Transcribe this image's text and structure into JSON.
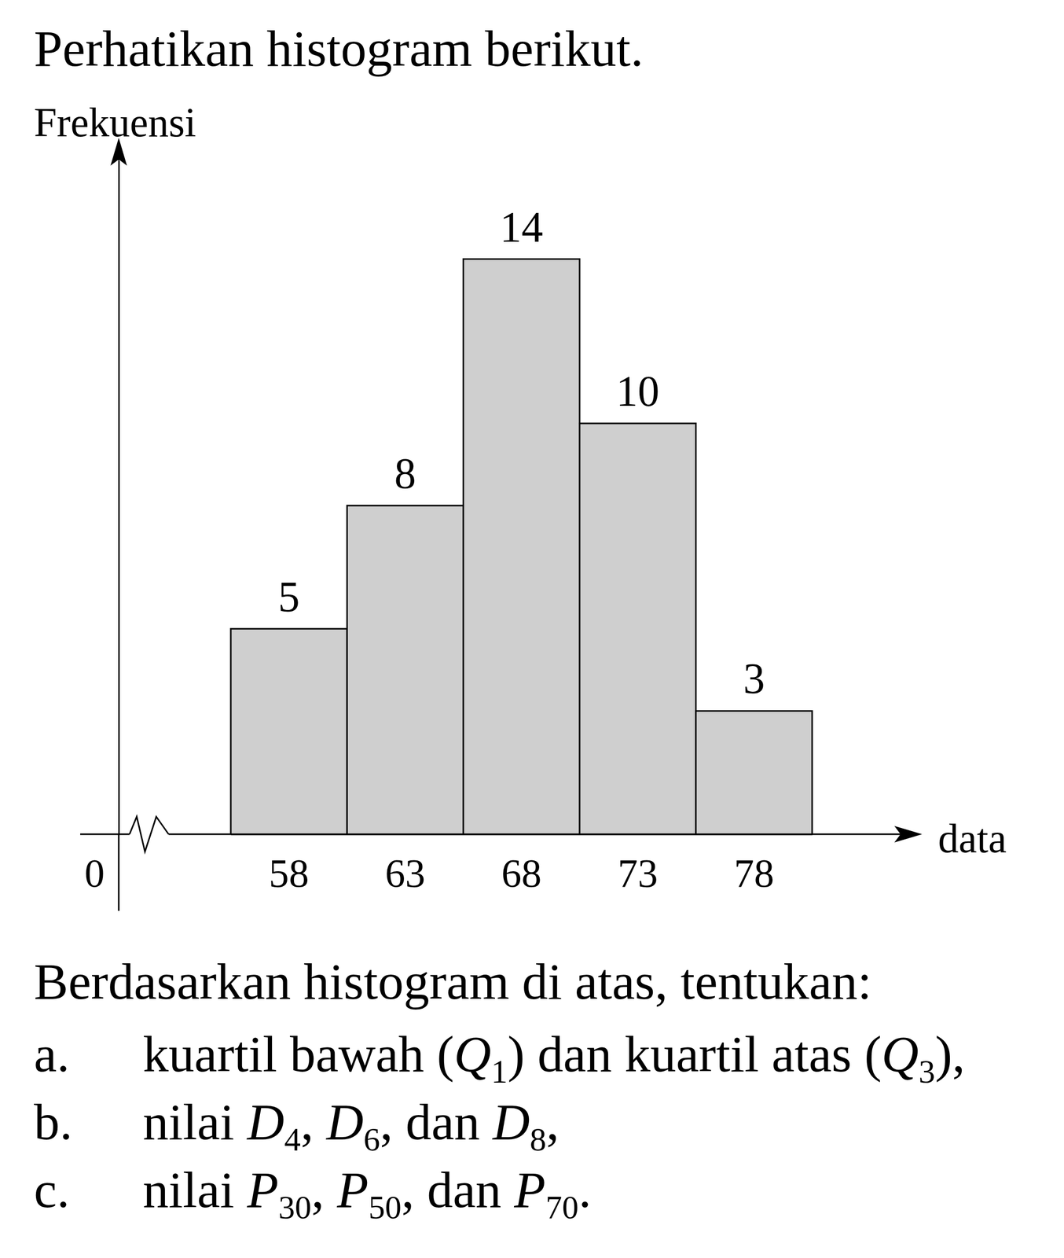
{
  "intro": "Perhatikan histogram berikut.",
  "chart_data": {
    "type": "bar",
    "y_label": "Frekuensi",
    "x_label": "data",
    "categories": [
      "58",
      "63",
      "68",
      "73",
      "78"
    ],
    "values": [
      5,
      8,
      14,
      10,
      3
    ],
    "color": "#cfcfcf",
    "ylim": [
      0,
      16.4
    ],
    "data_labels": true,
    "tick_labels": "x",
    "annotations": [
      {
        "text": "0"
      }
    ]
  },
  "question": {
    "prompt": "Berdasarkan histogram di atas, tentukan:",
    "items": [
      {
        "label": "a.",
        "parts": [
          {
            "text": "kuartil bawah ("
          },
          {
            "var": "Q",
            "sub": "1"
          },
          {
            "text": ") dan kuartil atas ("
          },
          {
            "var": "Q",
            "sub": "3"
          },
          {
            "text": "),"
          }
        ]
      },
      {
        "label": "b.",
        "parts": [
          {
            "text": "nilai "
          },
          {
            "var": "D",
            "sub": "4"
          },
          {
            "text": ", "
          },
          {
            "var": "D",
            "sub": "6"
          },
          {
            "text": ", dan "
          },
          {
            "var": "D",
            "sub": "8"
          },
          {
            "text": ","
          }
        ]
      },
      {
        "label": "c.",
        "parts": [
          {
            "text": "nilai "
          },
          {
            "var": "P",
            "sub": "30"
          },
          {
            "text": ", "
          },
          {
            "var": "P",
            "sub": "50"
          },
          {
            "text": ", dan "
          },
          {
            "var": "P",
            "sub": "70"
          },
          {
            "text": "."
          }
        ]
      }
    ]
  }
}
